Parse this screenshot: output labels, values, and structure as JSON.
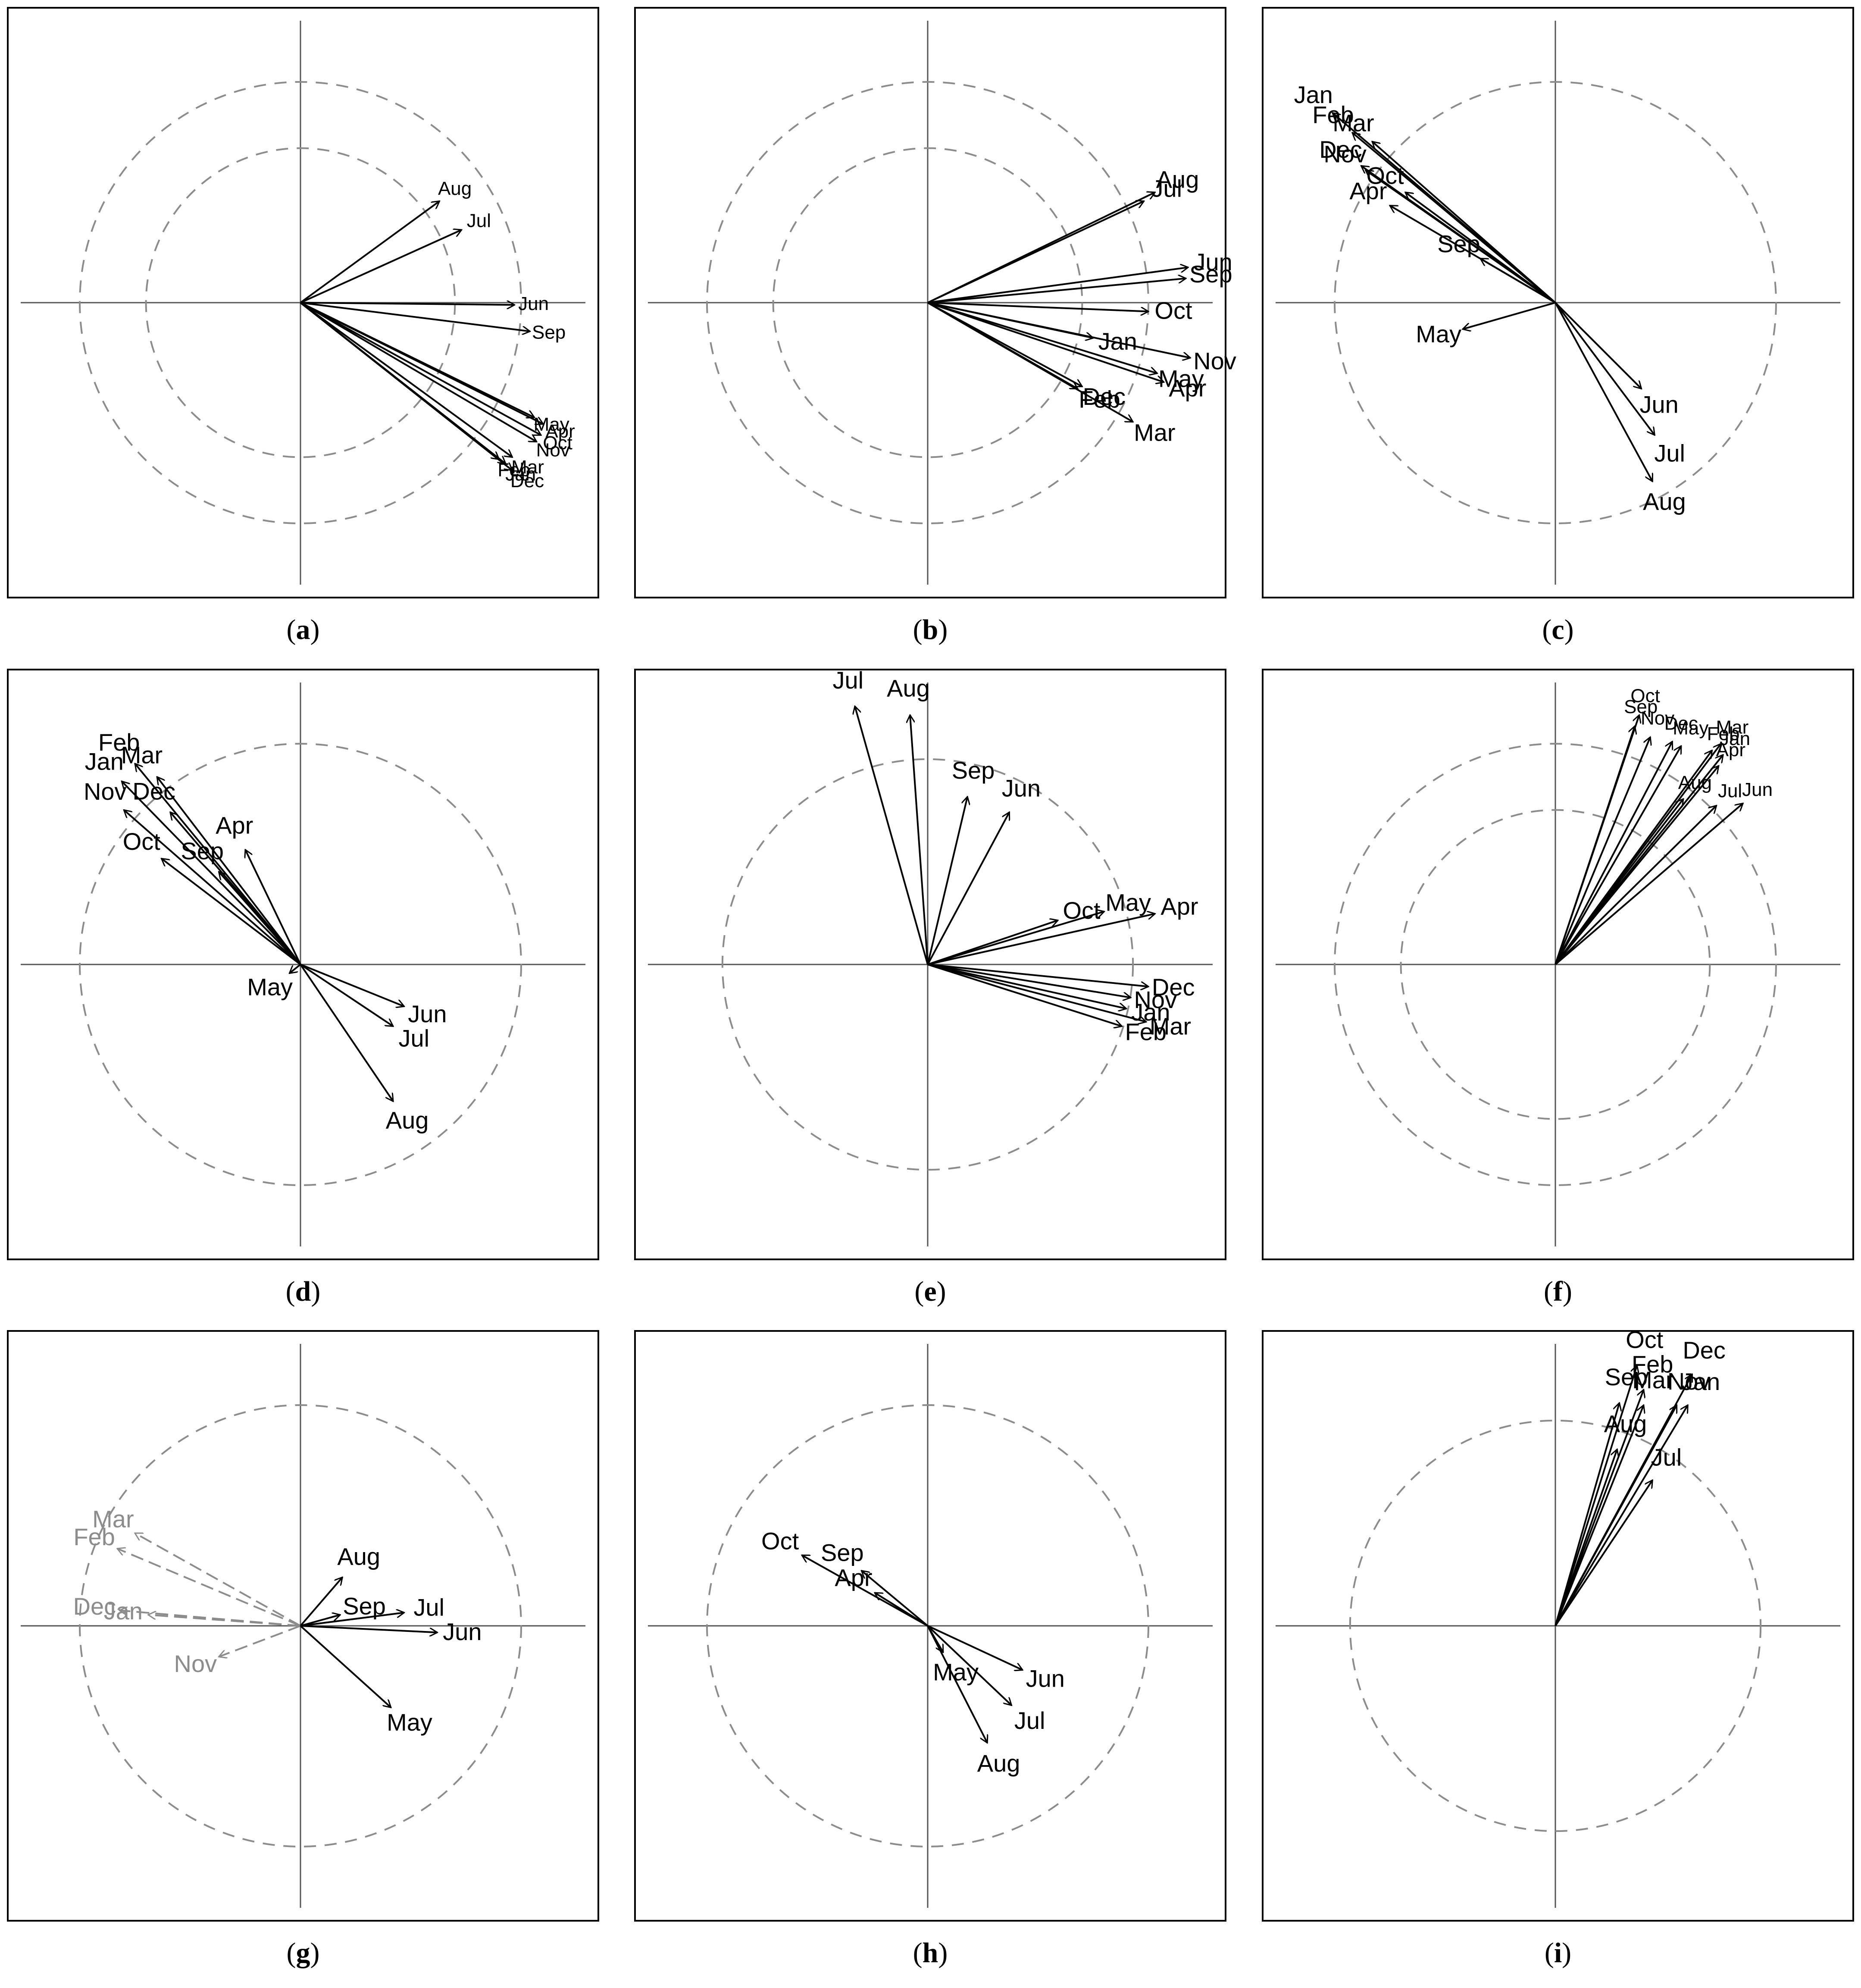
{
  "chart_data": [
    {
      "type": "vector-biplot",
      "caption": "a",
      "circle_radii": [
        0.7,
        1.0
      ],
      "xlim": [
        -1.3,
        1.35
      ],
      "ylim": [
        -1.35,
        1.35
      ],
      "vectors": [
        {
          "name": "Aug",
          "x": 0.63,
          "y": 0.46,
          "color": "#000000"
        },
        {
          "name": "Jul",
          "x": 0.73,
          "y": 0.33,
          "color": "#000000"
        },
        {
          "name": "Jun",
          "x": 0.97,
          "y": -0.01,
          "color": "#000000"
        },
        {
          "name": "Sep",
          "x": 1.04,
          "y": -0.13,
          "color": "#000000"
        },
        {
          "name": "May",
          "x": 1.06,
          "y": -0.52,
          "color": "#000000"
        },
        {
          "name": "Apr",
          "x": 1.1,
          "y": -0.55,
          "color": "#000000"
        },
        {
          "name": "Oct",
          "x": 1.09,
          "y": -0.6,
          "color": "#000000"
        },
        {
          "name": "Nov",
          "x": 1.07,
          "y": -0.63,
          "color": "#000000"
        },
        {
          "name": "Dec",
          "x": 0.96,
          "y": -0.76,
          "color": "#000000"
        },
        {
          "name": "Mar",
          "x": 0.96,
          "y": -0.7,
          "color": "#000000"
        },
        {
          "name": "Feb",
          "x": 0.9,
          "y": -0.71,
          "color": "#000000"
        },
        {
          "name": "Jan",
          "x": 0.93,
          "y": -0.73,
          "color": "#000000"
        }
      ]
    },
    {
      "type": "vector-biplot",
      "caption": "b",
      "circle_radii": [
        0.7,
        1.0
      ],
      "xlim": [
        -1.3,
        1.35
      ],
      "ylim": [
        -1.35,
        1.35
      ],
      "vectors": [
        {
          "name": "Aug",
          "x": 1.03,
          "y": 0.5,
          "color": "#000000"
        },
        {
          "name": "Jul",
          "x": 0.98,
          "y": 0.46,
          "color": "#000000"
        },
        {
          "name": "Jun",
          "x": 1.18,
          "y": 0.16,
          "color": "#000000"
        },
        {
          "name": "Sep",
          "x": 1.17,
          "y": 0.11,
          "color": "#000000"
        },
        {
          "name": "Oct",
          "x": 1.0,
          "y": -0.04,
          "color": "#000000"
        },
        {
          "name": "Nov",
          "x": 1.19,
          "y": -0.25,
          "color": "#000000"
        },
        {
          "name": "May",
          "x": 1.04,
          "y": -0.32,
          "color": "#000000"
        },
        {
          "name": "Apr",
          "x": 1.07,
          "y": -0.36,
          "color": "#000000"
        },
        {
          "name": "Jan",
          "x": 0.75,
          "y": -0.16,
          "color": "#000000"
        },
        {
          "name": "Dec",
          "x": 0.7,
          "y": -0.38,
          "color": "#000000"
        },
        {
          "name": "Feb",
          "x": 0.68,
          "y": -0.39,
          "color": "#000000"
        },
        {
          "name": "Mar",
          "x": 0.93,
          "y": -0.54,
          "color": "#000000"
        }
      ]
    },
    {
      "type": "vector-biplot",
      "caption": "c",
      "circle_radii": [
        1.0
      ],
      "xlim": [
        -1.3,
        1.35
      ],
      "ylim": [
        -1.35,
        1.35
      ],
      "vectors": [
        {
          "name": "Mar",
          "x": -0.83,
          "y": 0.73,
          "color": "#000000"
        },
        {
          "name": "Jan",
          "x": -1.01,
          "y": 0.86,
          "color": "#000000"
        },
        {
          "name": "Feb",
          "x": -0.92,
          "y": 0.77,
          "color": "#000000"
        },
        {
          "name": "Nov",
          "x": -0.86,
          "y": 0.6,
          "color": "#000000"
        },
        {
          "name": "Dec",
          "x": -0.88,
          "y": 0.62,
          "color": "#000000"
        },
        {
          "name": "Oct",
          "x": -0.68,
          "y": 0.5,
          "color": "#000000"
        },
        {
          "name": "Apr",
          "x": -0.75,
          "y": 0.44,
          "color": "#000000"
        },
        {
          "name": "Sep",
          "x": -0.34,
          "y": 0.2,
          "color": "#000000"
        },
        {
          "name": "May",
          "x": -0.42,
          "y": -0.12,
          "color": "#000000"
        },
        {
          "name": "Jun",
          "x": 0.39,
          "y": -0.39,
          "color": "#000000"
        },
        {
          "name": "Jul",
          "x": 0.45,
          "y": -0.6,
          "color": "#000000"
        },
        {
          "name": "Aug",
          "x": 0.44,
          "y": -0.81,
          "color": "#000000"
        }
      ]
    },
    {
      "type": "vector-biplot",
      "caption": "d",
      "circle_radii": [
        1.0
      ],
      "xlim": [
        -1.3,
        1.35
      ],
      "ylim": [
        -1.35,
        1.35
      ],
      "vectors": [
        {
          "name": "Feb",
          "x": -0.75,
          "y": 0.91,
          "color": "#000000"
        },
        {
          "name": "Jan",
          "x": -0.81,
          "y": 0.83,
          "color": "#000000"
        },
        {
          "name": "Mar",
          "x": -0.65,
          "y": 0.85,
          "color": "#000000"
        },
        {
          "name": "Dec",
          "x": -0.59,
          "y": 0.69,
          "color": "#000000"
        },
        {
          "name": "Nov",
          "x": -0.8,
          "y": 0.7,
          "color": "#000000"
        },
        {
          "name": "Oct",
          "x": -0.63,
          "y": 0.48,
          "color": "#000000"
        },
        {
          "name": "Sep",
          "x": -0.37,
          "y": 0.42,
          "color": "#000000"
        },
        {
          "name": "Apr",
          "x": -0.25,
          "y": 0.52,
          "color": "#000000"
        },
        {
          "name": "May",
          "x": -0.05,
          "y": -0.04,
          "color": "#000000"
        },
        {
          "name": "Jun",
          "x": 0.47,
          "y": -0.19,
          "color": "#000000"
        },
        {
          "name": "Jul",
          "x": 0.42,
          "y": -0.28,
          "color": "#000000"
        },
        {
          "name": "Aug",
          "x": 0.42,
          "y": -0.62,
          "color": "#000000"
        }
      ]
    },
    {
      "type": "vector-biplot",
      "caption": "e",
      "circle_radii": [
        0.93
      ],
      "xlim": [
        -1.3,
        1.35
      ],
      "ylim": [
        -1.35,
        1.35
      ],
      "vectors": [
        {
          "name": "Jul",
          "x": -0.33,
          "y": 1.17,
          "color": "#000000"
        },
        {
          "name": "Aug",
          "x": -0.08,
          "y": 1.13,
          "color": "#000000"
        },
        {
          "name": "Sep",
          "x": 0.18,
          "y": 0.76,
          "color": "#000000"
        },
        {
          "name": "Jun",
          "x": 0.37,
          "y": 0.69,
          "color": "#000000"
        },
        {
          "name": "May",
          "x": 0.8,
          "y": 0.24,
          "color": "#000000"
        },
        {
          "name": "Oct",
          "x": 0.59,
          "y": 0.2,
          "color": "#000000"
        },
        {
          "name": "Apr",
          "x": 1.03,
          "y": 0.23,
          "color": "#000000"
        },
        {
          "name": "Dec",
          "x": 1.0,
          "y": -0.1,
          "color": "#000000"
        },
        {
          "name": "Nov",
          "x": 0.92,
          "y": -0.15,
          "color": "#000000"
        },
        {
          "name": "Jan",
          "x": 0.9,
          "y": -0.2,
          "color": "#000000"
        },
        {
          "name": "Mar",
          "x": 0.99,
          "y": -0.26,
          "color": "#000000"
        },
        {
          "name": "Feb",
          "x": 0.88,
          "y": -0.28,
          "color": "#000000"
        }
      ]
    },
    {
      "type": "vector-biplot",
      "caption": "f",
      "circle_radii": [
        0.7,
        1.0
      ],
      "xlim": [
        -1.3,
        1.35
      ],
      "ylim": [
        -1.35,
        1.35
      ],
      "vectors": [
        {
          "name": "Oct",
          "x": 0.38,
          "y": 1.13,
          "color": "#000000"
        },
        {
          "name": "Sep",
          "x": 0.36,
          "y": 1.08,
          "color": "#000000"
        },
        {
          "name": "Dec",
          "x": 0.53,
          "y": 1.01,
          "color": "#000000"
        },
        {
          "name": "May",
          "x": 0.57,
          "y": 0.99,
          "color": "#000000"
        },
        {
          "name": "Nov",
          "x": 0.43,
          "y": 1.03,
          "color": "#000000"
        },
        {
          "name": "Mar",
          "x": 0.75,
          "y": 1.0,
          "color": "#000000"
        },
        {
          "name": "Jan",
          "x": 0.76,
          "y": 0.95,
          "color": "#000000"
        },
        {
          "name": "Feb",
          "x": 0.71,
          "y": 0.97,
          "color": "#000000"
        },
        {
          "name": "Apr",
          "x": 0.74,
          "y": 0.9,
          "color": "#000000"
        },
        {
          "name": "Aug",
          "x": 0.58,
          "y": 0.75,
          "color": "#000000"
        },
        {
          "name": "Jun",
          "x": 0.85,
          "y": 0.73,
          "color": "#000000"
        },
        {
          "name": "Jul",
          "x": 0.73,
          "y": 0.72,
          "color": "#000000"
        }
      ]
    },
    {
      "type": "vector-biplot",
      "caption": "g",
      "circle_radii": [
        1.0
      ],
      "xlim": [
        -1.3,
        1.35
      ],
      "ylim": [
        -1.35,
        1.35
      ],
      "vectors": [
        {
          "name": "Mar",
          "x": -0.75,
          "y": 0.42,
          "color": "#8c8c8c",
          "dashed": true
        },
        {
          "name": "Feb",
          "x": -0.83,
          "y": 0.35,
          "color": "#8c8c8c",
          "dashed": true
        },
        {
          "name": "Dec",
          "x": -0.82,
          "y": 0.07,
          "color": "#8c8c8c",
          "dashed": true
        },
        {
          "name": "Jan",
          "x": -0.69,
          "y": 0.05,
          "color": "#8c8c8c",
          "dashed": true
        },
        {
          "name": "Nov",
          "x": -0.37,
          "y": -0.14,
          "color": "#8c8c8c",
          "dashed": true
        },
        {
          "name": "Aug",
          "x": 0.19,
          "y": 0.22,
          "color": "#000000"
        },
        {
          "name": "Sep",
          "x": 0.18,
          "y": 0.05,
          "color": "#000000"
        },
        {
          "name": "Jul",
          "x": 0.47,
          "y": 0.06,
          "color": "#000000"
        },
        {
          "name": "Jun",
          "x": 0.62,
          "y": -0.03,
          "color": "#000000"
        },
        {
          "name": "May",
          "x": 0.41,
          "y": -0.37,
          "color": "#000000"
        }
      ]
    },
    {
      "type": "vector-biplot",
      "caption": "h",
      "circle_radii": [
        1.0
      ],
      "xlim": [
        -1.3,
        1.35
      ],
      "ylim": [
        -1.35,
        1.35
      ],
      "vectors": [
        {
          "name": "Oct",
          "x": -0.57,
          "y": 0.32,
          "color": "#000000"
        },
        {
          "name": "Sep",
          "x": -0.3,
          "y": 0.25,
          "color": "#000000"
        },
        {
          "name": "Apr",
          "x": -0.24,
          "y": 0.15,
          "color": "#000000"
        },
        {
          "name": "May",
          "x": 0.07,
          "y": -0.12,
          "color": "#000000"
        },
        {
          "name": "Jun",
          "x": 0.43,
          "y": -0.2,
          "color": "#000000"
        },
        {
          "name": "Jul",
          "x": 0.38,
          "y": -0.36,
          "color": "#000000"
        },
        {
          "name": "Aug",
          "x": 0.27,
          "y": -0.53,
          "color": "#000000"
        }
      ]
    },
    {
      "type": "vector-biplot",
      "caption": "i",
      "circle_radii": [
        0.93
      ],
      "xlim": [
        -1.3,
        1.35
      ],
      "ylim": [
        -1.35,
        1.35
      ],
      "vectors": [
        {
          "name": "Oct",
          "x": 0.37,
          "y": 1.18,
          "color": "#000000"
        },
        {
          "name": "Dec",
          "x": 0.62,
          "y": 1.14,
          "color": "#000000"
        },
        {
          "name": "Feb",
          "x": 0.4,
          "y": 1.07,
          "color": "#000000"
        },
        {
          "name": "Sep",
          "x": 0.29,
          "y": 1.01,
          "color": "#000000"
        },
        {
          "name": "Mar",
          "x": 0.4,
          "y": 1.0,
          "color": "#000000"
        },
        {
          "name": "Nov",
          "x": 0.55,
          "y": 1.0,
          "color": "#000000"
        },
        {
          "name": "Jan",
          "x": 0.6,
          "y": 1.0,
          "color": "#000000"
        },
        {
          "name": "Aug",
          "x": 0.28,
          "y": 0.8,
          "color": "#000000"
        },
        {
          "name": "Jul",
          "x": 0.44,
          "y": 0.66,
          "color": "#000000"
        }
      ]
    }
  ]
}
